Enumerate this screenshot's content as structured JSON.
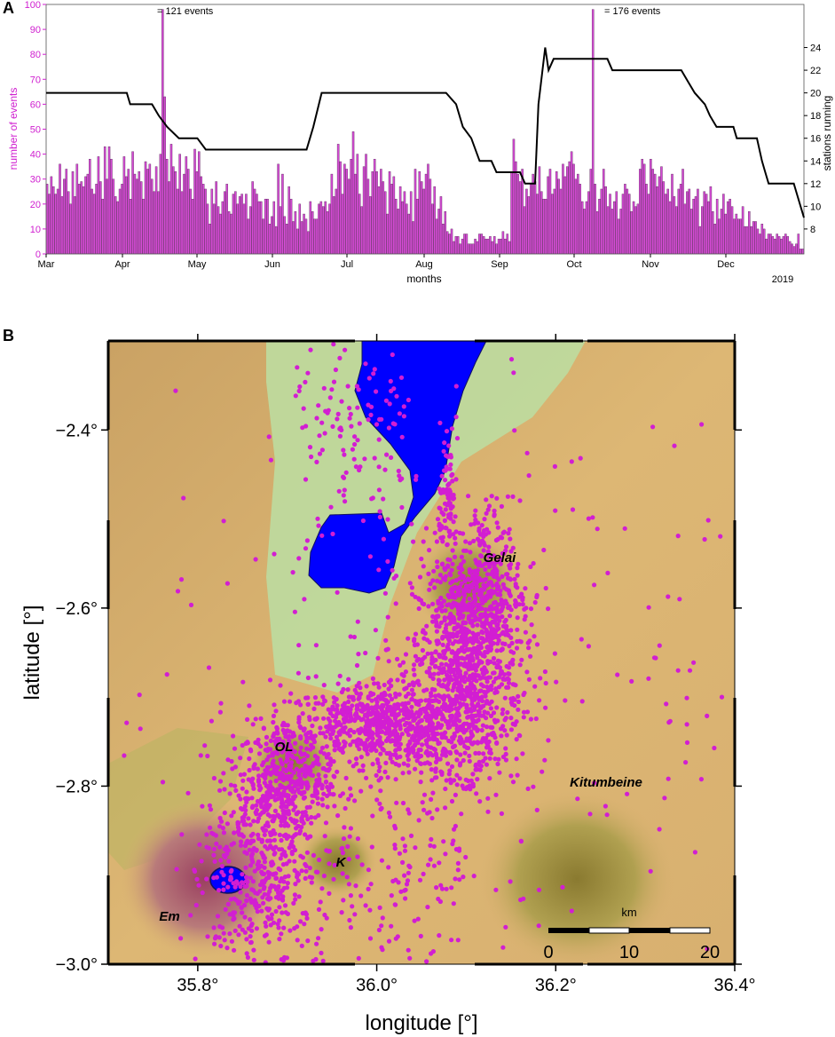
{
  "panel_a": {
    "label": "A",
    "annotations": [
      "= 121 events",
      "= 176 events"
    ],
    "colors": {
      "bars": "#d64bd6",
      "bar_edge": "#5a2a5a",
      "stations": "#000000",
      "left_axis": "#d020d0"
    }
  },
  "panel_b": {
    "label": "B",
    "volcano_labels": [
      "Gelai",
      "OL",
      "Kitumbeine",
      "K",
      "Em"
    ],
    "scalebar": {
      "unit": "km",
      "ticks": [
        "0",
        "10",
        "20"
      ]
    },
    "colors": {
      "water": "#0000ff",
      "events": "#d21ed2",
      "terrain": "#d8b070",
      "plain": "#bcdca0"
    }
  },
  "chart_data": [
    {
      "type": "bar",
      "panel": "A",
      "title": "",
      "xlabel": "months",
      "ylabel": "number of events",
      "y2label": "stations running",
      "xticks": [
        "Mar",
        "Apr",
        "May",
        "Jun",
        "Jul",
        "Aug",
        "Sep",
        "Oct",
        "Nov",
        "Dec"
      ],
      "year_label": "2019",
      "ylim": [
        0,
        100
      ],
      "yticks": [
        "0",
        "10",
        "20",
        "30",
        "40",
        "50",
        "60",
        "70",
        "80",
        "90",
        "100"
      ],
      "y2lim": [
        5.8,
        27.8
      ],
      "y2ticks": [
        "8",
        "10",
        "12",
        "14",
        "16",
        "18",
        "20",
        "22",
        "24"
      ],
      "series": [
        {
          "name": "number of events",
          "kind": "bar",
          "values": [
            28,
            24,
            31,
            27,
            24,
            26,
            36,
            23,
            30,
            34,
            25,
            20,
            33,
            23,
            36,
            28,
            29,
            27,
            31,
            32,
            38,
            26,
            24,
            28,
            39,
            29,
            22,
            43,
            30,
            43,
            38,
            30,
            23,
            21,
            26,
            28,
            39,
            31,
            34,
            22,
            41,
            32,
            30,
            33,
            29,
            22,
            37,
            34,
            36,
            30,
            25,
            35,
            25,
            40,
            98,
            63,
            38,
            29,
            44,
            35,
            33,
            26,
            40,
            25,
            32,
            39,
            34,
            26,
            22,
            42,
            33,
            41,
            31,
            28,
            26,
            20,
            12,
            26,
            20,
            29,
            19,
            16,
            21,
            25,
            28,
            17,
            16,
            24,
            25,
            20,
            23,
            24,
            20,
            24,
            14,
            19,
            29,
            26,
            24,
            21,
            21,
            14,
            22,
            22,
            12,
            15,
            21,
            11,
            36,
            19,
            32,
            15,
            12,
            27,
            22,
            13,
            17,
            10,
            20,
            13,
            16,
            14,
            9,
            21,
            17,
            14,
            14,
            20,
            21,
            19,
            21,
            17,
            20,
            32,
            23,
            26,
            44,
            37,
            24,
            36,
            34,
            30,
            38,
            49,
            32,
            40,
            24,
            19,
            35,
            40,
            30,
            23,
            33,
            38,
            33,
            27,
            34,
            29,
            25,
            16,
            33,
            28,
            31,
            22,
            18,
            27,
            21,
            25,
            20,
            16,
            25,
            13,
            34,
            22,
            33,
            29,
            26,
            32,
            36,
            30,
            20,
            27,
            14,
            18,
            23,
            12,
            17,
            9,
            8,
            10,
            5,
            7,
            7,
            4,
            6,
            8,
            8,
            4,
            4,
            4,
            6,
            5,
            8,
            8,
            7,
            6,
            6,
            7,
            5,
            7,
            4,
            6,
            6,
            9,
            6,
            8,
            5,
            33,
            46,
            37,
            32,
            29,
            34,
            19,
            26,
            23,
            28,
            32,
            29,
            24,
            35,
            25,
            22,
            22,
            31,
            34,
            24,
            26,
            33,
            30,
            26,
            36,
            31,
            35,
            37,
            41,
            36,
            30,
            32,
            28,
            21,
            18,
            21,
            25,
            34,
            98,
            28,
            17,
            22,
            26,
            34,
            27,
            19,
            24,
            18,
            21,
            25,
            14,
            18,
            24,
            28,
            26,
            24,
            17,
            21,
            19,
            20,
            34,
            38,
            36,
            28,
            24,
            38,
            34,
            32,
            27,
            31,
            35,
            29,
            24,
            26,
            21,
            32,
            23,
            19,
            26,
            28,
            34,
            20,
            25,
            26,
            18,
            22,
            23,
            26,
            11,
            19,
            25,
            24,
            21,
            27,
            17,
            12,
            22,
            14,
            18,
            24,
            16,
            21,
            22,
            19,
            14,
            16,
            14,
            14,
            19,
            11,
            11,
            17,
            11,
            13,
            13,
            10,
            8,
            12,
            10,
            6,
            8,
            8,
            7,
            6,
            8,
            7,
            6,
            7,
            8,
            7,
            5,
            4,
            3,
            4,
            8,
            2,
            2
          ]
        },
        {
          "name": "stations running",
          "kind": "line",
          "points": [
            [
              0,
              20
            ],
            [
              96,
              20
            ],
            [
              100,
              19
            ],
            [
              126,
              19
            ],
            [
              134,
              18
            ],
            [
              144,
              17
            ],
            [
              158,
              16
            ],
            [
              180,
              16
            ],
            [
              190,
              15
            ],
            [
              310,
              15
            ],
            [
              318,
              17
            ],
            [
              328,
              20
            ],
            [
              476,
              20
            ],
            [
              488,
              19
            ],
            [
              496,
              17
            ],
            [
              506,
              16
            ],
            [
              516,
              14
            ],
            [
              530,
              14
            ],
            [
              536,
              13
            ],
            [
              564,
              13
            ],
            [
              570,
              12
            ],
            [
              582,
              12
            ],
            [
              586,
              19
            ],
            [
              594,
              24
            ],
            [
              598,
              22
            ],
            [
              604,
              23
            ],
            [
              668,
              23
            ],
            [
              674,
              22
            ],
            [
              756,
              22
            ],
            [
              764,
              21
            ],
            [
              772,
              20
            ],
            [
              784,
              19
            ],
            [
              790,
              18
            ],
            [
              798,
              17
            ],
            [
              818,
              17
            ],
            [
              822,
              16
            ],
            [
              846,
              16
            ],
            [
              852,
              14
            ],
            [
              856,
              13
            ],
            [
              860,
              12
            ],
            [
              890,
              12
            ],
            [
              894,
              11
            ],
            [
              898,
              10
            ],
            [
              902,
              9
            ]
          ]
        }
      ],
      "peak_annotations": [
        {
          "text": "= 121 events",
          "value": 121
        },
        {
          "text": "= 176 events",
          "value": 176
        }
      ],
      "grid": false,
      "legend": "none"
    },
    {
      "type": "scatter",
      "panel": "B",
      "title": "",
      "xlabel": "longitude [°]",
      "ylabel": "latitude [°]",
      "xlim": [
        35.7,
        36.4
      ],
      "ylim": [
        -3.0,
        -2.3
      ],
      "xticks": [
        "35.8°",
        "36.0°",
        "36.2°",
        "36.4°"
      ],
      "yticks": [
        "−2.4°",
        "−2.6°",
        "−2.8°",
        "−3.0°"
      ],
      "series": [
        {
          "name": "",
          "kind": "scatter",
          "color": "#d21ed2"
        }
      ]
    }
  ]
}
